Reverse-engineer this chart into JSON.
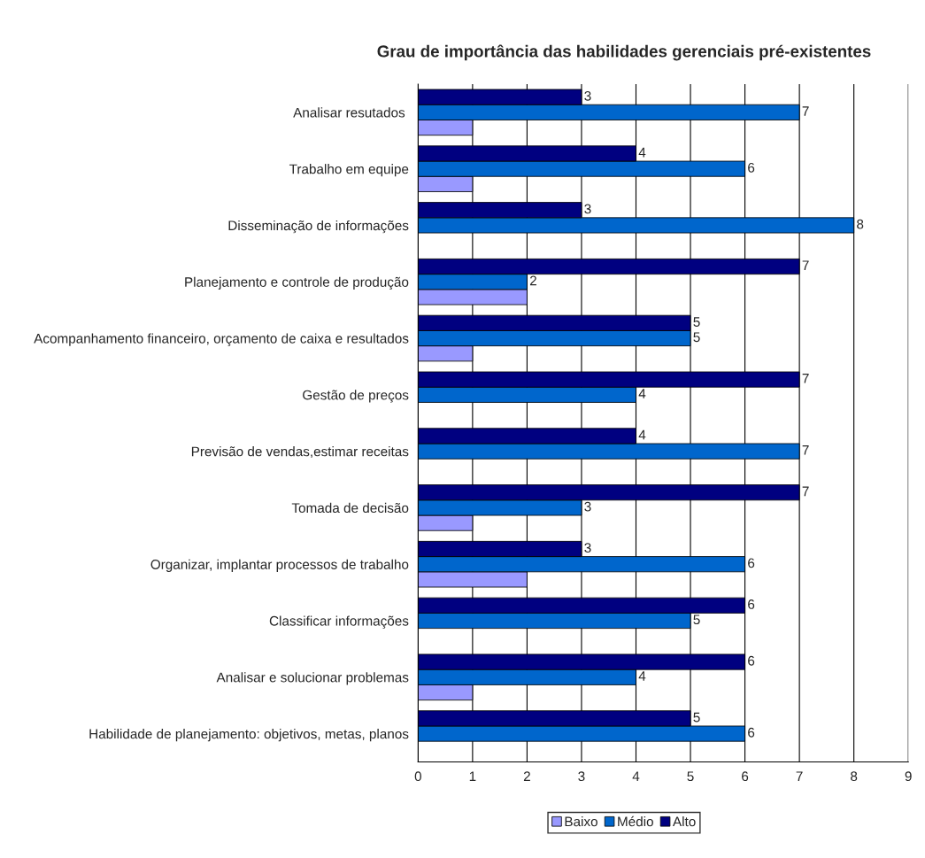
{
  "chart_data": {
    "type": "bar",
    "orientation": "horizontal",
    "title": "Grau de importância das habilidades gerenciais pré-existentes",
    "categories": [
      "Analisar resutados ",
      "Trabalho em equipe",
      "Disseminação de informações",
      "Planejamento e controle de produção",
      "Acompanhamento financeiro, orçamento de caixa e resultados",
      "Gestão de preços",
      "Previsão de vendas,estimar receitas",
      "Tomada de decisão",
      "Organizar, implantar processos de trabalho",
      "Classificar informações",
      "Analisar e solucionar problemas",
      "Habilidade de planejamento: objetivos, metas, planos"
    ],
    "series": [
      {
        "name": "Baixo",
        "color": "#9999ff",
        "values": [
          1,
          1,
          null,
          2,
          1,
          null,
          null,
          1,
          2,
          null,
          1,
          null
        ]
      },
      {
        "name": "Médio",
        "color": "#0066cc",
        "values": [
          7,
          6,
          8,
          2,
          5,
          4,
          7,
          3,
          6,
          5,
          4,
          6
        ],
        "value_labels": [
          "7",
          "6",
          "8",
          "2",
          "5",
          "4",
          "7",
          "3",
          "6",
          "5",
          "4",
          "6"
        ]
      },
      {
        "name": "Alto",
        "color": "#000080",
        "values": [
          3,
          4,
          3,
          7,
          5,
          7,
          4,
          7,
          3,
          6,
          6,
          5
        ],
        "value_labels": [
          "3",
          "4",
          "3",
          "7",
          "5",
          "7",
          "4",
          "7",
          "3",
          "6",
          "6",
          "5"
        ]
      }
    ],
    "xlim": [
      0,
      9
    ],
    "xticks": [
      0,
      1,
      2,
      3,
      4,
      5,
      6,
      7,
      8,
      9
    ],
    "grid": "x",
    "legend": "bottom"
  }
}
